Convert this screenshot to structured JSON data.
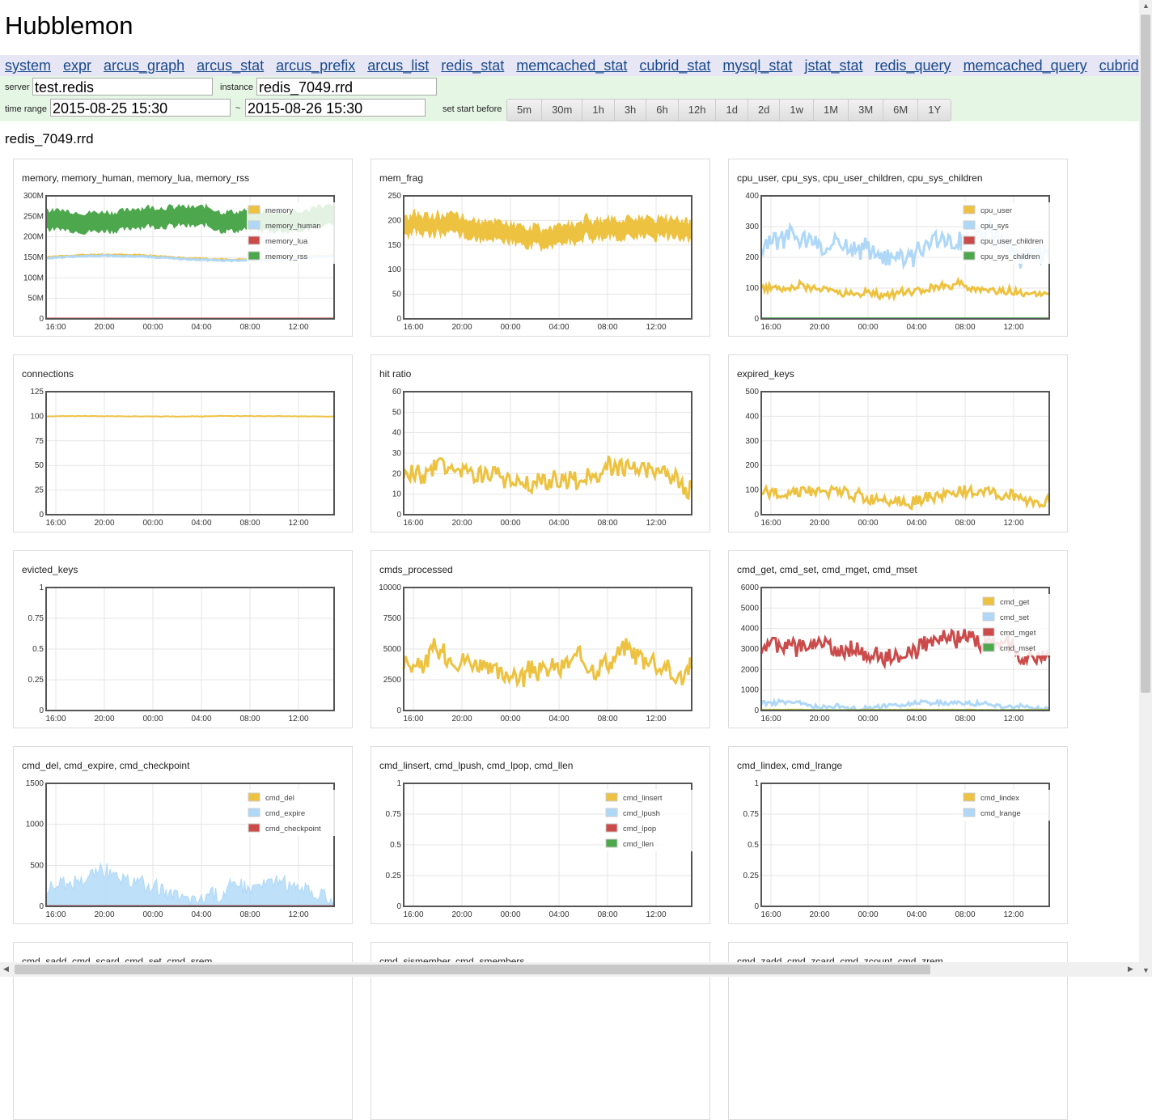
{
  "title": "Hubblemon",
  "nav": [
    "system",
    "expr",
    "arcus_graph",
    "arcus_stat",
    "arcus_prefix",
    "arcus_list",
    "redis_stat",
    "memcached_stat",
    "cubrid_stat",
    "mysql_stat",
    "jstat_stat",
    "redis_query",
    "memcached_query",
    "cubrid"
  ],
  "form": {
    "server_label": "server",
    "server_value": "test.redis",
    "instance_label": "instance",
    "instance_value": "redis_7049.rrd",
    "time_range_label": "time range",
    "start": "2015-08-25 15:30",
    "separator": "~",
    "end": "2015-08-26 15:30",
    "set_start_label": "set start before",
    "buttons": [
      "5m",
      "30m",
      "1h",
      "3h",
      "6h",
      "12h",
      "1d",
      "2d",
      "1w",
      "1M",
      "3M",
      "6M",
      "1Y"
    ]
  },
  "instance_heading": "redis_7049.rrd",
  "colors": {
    "yellow": "#edc240",
    "blue": "#afd8f8",
    "red": "#cb4b4b",
    "green": "#4da74d"
  },
  "xticks": [
    "16:00",
    "20:00",
    "00:00",
    "04:00",
    "08:00",
    "12:00"
  ],
  "charts": [
    {
      "title": "memory, memory_human, memory_lua, memory_rss",
      "yticks": [
        "0",
        "50M",
        "100M",
        "150M",
        "200M",
        "250M",
        "300M"
      ],
      "ymax": 300,
      "series": [
        {
          "name": "memory",
          "color": "yellow",
          "base": 150,
          "amp": 10,
          "style": "fill",
          "shape": "bump"
        },
        {
          "name": "memory_human",
          "color": "blue",
          "base": 148,
          "amp": 10,
          "style": "fill",
          "shape": "bump"
        },
        {
          "name": "memory_lua",
          "color": "red",
          "base": 1,
          "amp": 0,
          "style": "line"
        },
        {
          "name": "memory_rss",
          "color": "green",
          "base": 245,
          "amp": 15,
          "style": "band"
        }
      ],
      "legend": [
        "memory",
        "memory_human",
        "memory_lua",
        "memory_rss"
      ]
    },
    {
      "title": "mem_frag",
      "yticks": [
        "0",
        "50",
        "100",
        "150",
        "200",
        "250"
      ],
      "ymax": 250,
      "series": [
        {
          "name": "mem_frag",
          "color": "yellow",
          "base": 180,
          "amp": 22,
          "style": "band"
        }
      ],
      "legend": []
    },
    {
      "title": "cpu_user, cpu_sys, cpu_user_children, cpu_sys_children",
      "yticks": [
        "0",
        "100",
        "200",
        "300",
        "400"
      ],
      "ymax": 400,
      "series": [
        {
          "name": "cpu_sys",
          "color": "blue",
          "base": 220,
          "amp": 70,
          "style": "fill",
          "shape": "noisy"
        },
        {
          "name": "cpu_user",
          "color": "yellow",
          "base": 90,
          "amp": 25,
          "style": "fill",
          "shape": "noisy"
        },
        {
          "name": "cpu_user_children",
          "color": "red",
          "base": 1,
          "amp": 0,
          "style": "line"
        },
        {
          "name": "cpu_sys_children",
          "color": "green",
          "base": 2,
          "amp": 0,
          "style": "line"
        }
      ],
      "legend": [
        "cpu_user",
        "cpu_sys",
        "cpu_user_children",
        "cpu_sys_children"
      ]
    },
    {
      "title": "connections",
      "yticks": [
        "0",
        "25",
        "50",
        "75",
        "100",
        "125"
      ],
      "ymax": 125,
      "series": [
        {
          "name": "connections",
          "color": "yellow",
          "base": 100,
          "amp": 0.5,
          "style": "line"
        }
      ],
      "legend": []
    },
    {
      "title": "hit ratio",
      "yticks": [
        "0",
        "10",
        "20",
        "30",
        "40",
        "50",
        "60"
      ],
      "ymax": 60,
      "series": [
        {
          "name": "hit ratio",
          "color": "yellow",
          "base": 17,
          "amp": 10,
          "style": "noisyline"
        }
      ],
      "legend": []
    },
    {
      "title": "expired_keys",
      "yticks": [
        "0",
        "100",
        "200",
        "300",
        "400",
        "500"
      ],
      "ymax": 500,
      "series": [
        {
          "name": "expired_keys",
          "color": "yellow",
          "base": 80,
          "amp": 50,
          "style": "noisyline"
        }
      ],
      "legend": []
    },
    {
      "title": "evicted_keys",
      "yticks": [
        "0",
        "0.25",
        "0.5",
        "0.75",
        "1"
      ],
      "ymax": 1,
      "series": [
        {
          "name": "evicted_keys",
          "color": "yellow",
          "base": 0,
          "amp": 0,
          "style": "line"
        }
      ],
      "legend": []
    },
    {
      "title": "cmds_processed",
      "yticks": [
        "0",
        "2500",
        "5000",
        "7500",
        "10000"
      ],
      "ymax": 10000,
      "series": [
        {
          "name": "cmds_processed",
          "color": "yellow",
          "base": 3800,
          "amp": 1800,
          "style": "noisyline"
        }
      ],
      "legend": []
    },
    {
      "title": "cmd_get, cmd_set, cmd_mget, cmd_mset",
      "yticks": [
        "0",
        "1000",
        "2000",
        "3000",
        "4000",
        "5000",
        "6000"
      ],
      "ymax": 6000,
      "series": [
        {
          "name": "cmd_mget",
          "color": "red",
          "base": 3000,
          "amp": 900,
          "style": "noisyline"
        },
        {
          "name": "cmd_set",
          "color": "blue",
          "base": 250,
          "amp": 250,
          "style": "noisyline"
        },
        {
          "name": "cmd_get",
          "color": "yellow",
          "base": 40,
          "amp": 20,
          "style": "line"
        },
        {
          "name": "cmd_mset",
          "color": "green",
          "base": 20,
          "amp": 0,
          "style": "line"
        }
      ],
      "legend": [
        "cmd_get",
        "cmd_set",
        "cmd_mget",
        "cmd_mset"
      ]
    },
    {
      "title": "cmd_del, cmd_expire, cmd_checkpoint",
      "yticks": [
        "0",
        "500",
        "1000",
        "1500"
      ],
      "ymax": 1500,
      "series": [
        {
          "name": "cmd_expire",
          "color": "blue",
          "base": 220,
          "amp": 200,
          "style": "noisyfill"
        },
        {
          "name": "cmd_del",
          "color": "yellow",
          "base": 5,
          "amp": 0,
          "style": "line"
        },
        {
          "name": "cmd_checkpoint",
          "color": "red",
          "base": 5,
          "amp": 0,
          "style": "line"
        }
      ],
      "legend": [
        "cmd_del",
        "cmd_expire",
        "cmd_checkpoint"
      ]
    },
    {
      "title": "cmd_linsert, cmd_lpush, cmd_lpop, cmd_llen",
      "yticks": [
        "0",
        "0.25",
        "0.5",
        "0.75",
        "1"
      ],
      "ymax": 1,
      "series": [
        {
          "name": "cmd_llen",
          "color": "green",
          "base": 0,
          "amp": 0,
          "style": "line"
        }
      ],
      "legend": [
        "cmd_linsert",
        "cmd_lpush",
        "cmd_lpop",
        "cmd_llen"
      ]
    },
    {
      "title": "cmd_lindex, cmd_lrange",
      "yticks": [
        "0",
        "0.25",
        "0.5",
        "0.75",
        "1"
      ],
      "ymax": 1,
      "series": [
        {
          "name": "cmd_lrange",
          "color": "blue",
          "base": 0,
          "amp": 0,
          "style": "line"
        }
      ],
      "legend": [
        "cmd_lindex",
        "cmd_lrange"
      ]
    },
    {
      "title": "cmd_sadd, cmd_scard, cmd_set, cmd_srem",
      "yticks": [],
      "ymax": 1,
      "series": [],
      "legend": []
    },
    {
      "title": "cmd_sismember, cmd_smembers",
      "yticks": [],
      "ymax": 1,
      "series": [],
      "legend": []
    },
    {
      "title": "cmd_zadd, cmd_zcard, cmd_zcount, cmd_zrem",
      "yticks": [],
      "ymax": 1,
      "series": [],
      "legend": []
    }
  ]
}
